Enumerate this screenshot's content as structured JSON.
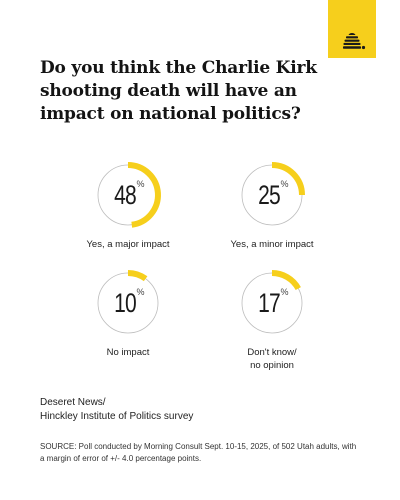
{
  "header": {
    "title": "Do you think the Charlie Kirk shooting death will have an impact on national politics?"
  },
  "colors": {
    "accent": "#f6cf1c",
    "ring_track": "#bdbdbd",
    "text": "#1a1a1a"
  },
  "chart_data": {
    "type": "pie",
    "style": "donut-progress-rings",
    "unit": "%",
    "categories": [
      "Yes, a major impact",
      "Yes, a minor impact",
      "No impact",
      "Don't know/ no opinion"
    ],
    "values": [
      48,
      25,
      10,
      17
    ],
    "items": [
      {
        "label": "Yes, a major impact",
        "value": 48,
        "display": "48"
      },
      {
        "label": "Yes, a minor impact",
        "value": 25,
        "display": "25"
      },
      {
        "label": "No impact",
        "value": 10,
        "display": "10"
      },
      {
        "label": "Don't know/\nno opinion",
        "value": 17,
        "display": "17"
      }
    ]
  },
  "source": {
    "title": "Deseret News/\nHinckley Institute of Politics survey",
    "note": "SOURCE: Poll conducted by Morning Consult Sept. 10-15, 2025, of 502 Utah adults, with a margin of error of +/- 4.0 percentage points."
  }
}
